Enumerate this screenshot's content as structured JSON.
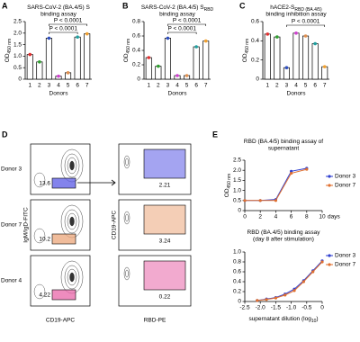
{
  "chart_data": [
    {
      "type": "bar",
      "panel": "A",
      "title": "SARS-CoV-2 (BA.4/5) S",
      "title_line2": "binding assay",
      "ylabel": "OD",
      "ylabel_sub": "450 nm",
      "xlabel": "Donors",
      "categories": [
        "1",
        "2",
        "3",
        "4",
        "5",
        "6",
        "7"
      ],
      "values": [
        1.07,
        0.75,
        1.78,
        0.13,
        0.28,
        1.83,
        1.97
      ],
      "colors": [
        "#e03030",
        "#30a030",
        "#3050c0",
        "#d040d0",
        "#e09050",
        "#20a0a0",
        "#f0a030"
      ],
      "ylim": [
        0,
        2.5
      ],
      "yticks": [
        0,
        0.5,
        {
          "value": 1,
          "label": "1.0"
        },
        1.5,
        {
          "value": 2,
          "label": "2.0"
        },
        2.5
      ],
      "annotations": [
        "P < 0.0001",
        "P < 0.0001"
      ]
    },
    {
      "type": "bar",
      "panel": "B",
      "title": "SARS-CoV-2 (BA.4/5) S",
      "title_sub": "RBD",
      "title_line2": "binding assay",
      "ylabel": "OD",
      "ylabel_sub": "450 nm",
      "xlabel": "Donors",
      "categories": [
        "1",
        "2",
        "3",
        "4",
        "5",
        "6",
        "7"
      ],
      "values": [
        0.3,
        0.18,
        0.57,
        0.05,
        0.05,
        0.45,
        0.53
      ],
      "colors": [
        "#e03030",
        "#30a030",
        "#3050c0",
        "#d040d0",
        "#e09050",
        "#20a0a0",
        "#f0a030"
      ],
      "ylim": [
        0,
        0.8
      ],
      "yticks": [
        0,
        0.2,
        0.4,
        0.6,
        0.8
      ],
      "annotations": [
        "P < 0.0001",
        "P < 0.0001"
      ]
    },
    {
      "type": "bar",
      "panel": "C",
      "title": "hACE2-S",
      "title_sub": "RBD (BA.4/5)",
      "title_line2": "binding inhibition assay",
      "ylabel": "OD",
      "ylabel_sub": "450 nm",
      "xlabel": "Donors",
      "categories": [
        "1",
        "2",
        "3",
        "4",
        "5",
        "6",
        "7"
      ],
      "values": [
        0.47,
        0.44,
        0.12,
        0.48,
        0.45,
        0.37,
        0.13
      ],
      "colors": [
        "#e03030",
        "#30a030",
        "#3050c0",
        "#d040d0",
        "#e09050",
        "#20a0a0",
        "#f0a030"
      ],
      "ylim": [
        0,
        0.6
      ],
      "yticks": [
        0,
        0.2,
        0.4,
        0.6
      ],
      "annotations": [
        "P < 0.0001"
      ]
    },
    {
      "type": "flow",
      "panel": "D",
      "left_xlabel": "CD19-APC",
      "left_ylabel": "IgM/IgD-FITC",
      "right_xlabel": "RBD-PE",
      "right_ylabel": "CD19-APC",
      "rows": [
        {
          "name": "Donor 3",
          "gate": "13.6",
          "rbd": "2.21",
          "color": "#5a5ae6"
        },
        {
          "name": "Donor 7",
          "gate": "10.2",
          "rbd": "3.24",
          "color": "#eba57a"
        },
        {
          "name": "Donor 4",
          "gate": "4.22",
          "rbd": "0.22",
          "color": "#e865a8"
        }
      ]
    },
    {
      "type": "line",
      "panel": "E",
      "title": "RBD (BA.4/5) binding assay of",
      "title_line2": "supernatant",
      "ylabel": "OD",
      "ylabel_sub": "450 nm",
      "x_unit": "days",
      "x": [
        0,
        2,
        4,
        6,
        8
      ],
      "xlim": [
        0,
        10
      ],
      "xticks": [
        0,
        2,
        4,
        6,
        8,
        10
      ],
      "ylim": [
        0,
        2.5
      ],
      "yticks": [
        0,
        0.5,
        {
          "value": 1,
          "label": "1.0"
        },
        1.5,
        {
          "value": 2,
          "label": "2.0"
        },
        2.5
      ],
      "legend": "right",
      "series": [
        {
          "name": "Donor 3",
          "color": "#3040d0",
          "values": [
            0.5,
            0.5,
            0.55,
            1.95,
            2.1
          ]
        },
        {
          "name": "Donor 7",
          "color": "#e07030",
          "values": [
            0.5,
            0.5,
            0.5,
            1.85,
            2.05
          ]
        }
      ]
    },
    {
      "type": "line",
      "title": "RBD (BA.4/5) binding assay",
      "title_line2": "(day 8 after stimulation)",
      "xlabel": "supernatant dilution (log",
      "xlabel_sub": "10",
      "xlabel_tail": ")",
      "x": [
        -2.1,
        -1.8,
        -1.5,
        -1.2,
        -0.9,
        -0.6,
        -0.3,
        0
      ],
      "xlim": [
        -2.5,
        0
      ],
      "xticks": [
        -2.5,
        {
          "value": -2,
          "label": "-2.0"
        },
        -1.5,
        {
          "value": -1,
          "label": "-1.0"
        },
        -0.5,
        0
      ],
      "ylim": [
        0,
        1
      ],
      "yticks": [
        0,
        0.2,
        0.4,
        0.6,
        0.8,
        {
          "value": 1,
          "label": "1.0"
        }
      ],
      "legend": "right",
      "series": [
        {
          "name": "Donor 3",
          "color": "#3040d0",
          "values": [
            0.02,
            0.05,
            0.08,
            0.15,
            0.25,
            0.42,
            0.62,
            0.82
          ]
        },
        {
          "name": "Donor 7",
          "color": "#e07030",
          "values": [
            0.02,
            0.04,
            0.07,
            0.13,
            0.22,
            0.4,
            0.6,
            0.8
          ]
        }
      ]
    }
  ]
}
